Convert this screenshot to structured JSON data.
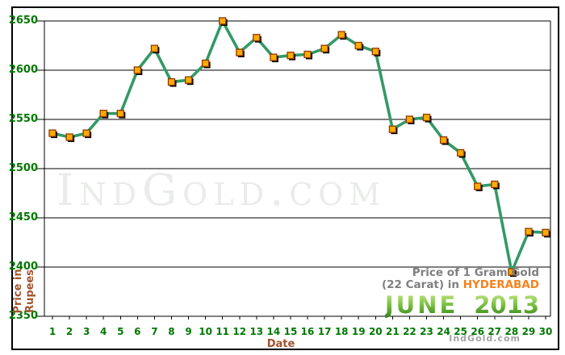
{
  "chart_data": {
    "type": "line",
    "title_line1": "Price of 1 Gram Gold",
    "title_line2_prefix": "(22 Carat) in",
    "city": "HYDERABAD",
    "month": "JUNE",
    "year": "2013",
    "xlabel": "Date",
    "ylabel": "Price in\nRupees",
    "watermark": "IndGold.com",
    "credit": "IndGold.com",
    "ylim": [
      2350,
      2650
    ],
    "yticks": [
      2650,
      2600,
      2550,
      2500,
      2450,
      2400,
      2350
    ],
    "grid": true,
    "legend_position": "none",
    "x": [
      1,
      2,
      3,
      4,
      5,
      6,
      7,
      8,
      9,
      10,
      11,
      12,
      13,
      14,
      15,
      16,
      17,
      18,
      19,
      20,
      21,
      22,
      23,
      24,
      25,
      26,
      27,
      28,
      29,
      30
    ],
    "values": [
      2536,
      2532,
      2536,
      2556,
      2556,
      2600,
      2622,
      2588,
      2590,
      2607,
      2650,
      2618,
      2633,
      2613,
      2615,
      2616,
      2622,
      2636,
      2625,
      2619,
      2540,
      2550,
      2552,
      2529,
      2516,
      2482,
      2484,
      2395,
      2436,
      2435
    ],
    "colors": {
      "line": "#339966",
      "marker": "#ffaa00",
      "marker_border": "#8a3c00",
      "marker_shadow": "#000000",
      "axis_labels": "#007800",
      "axis_titles": "#a0522d",
      "title_gray": "#7f7f7f",
      "city_orange": "#f5821f",
      "month_green": "#58a618",
      "watermark_gray": "#e9ece9",
      "gridline": "#000000"
    }
  }
}
